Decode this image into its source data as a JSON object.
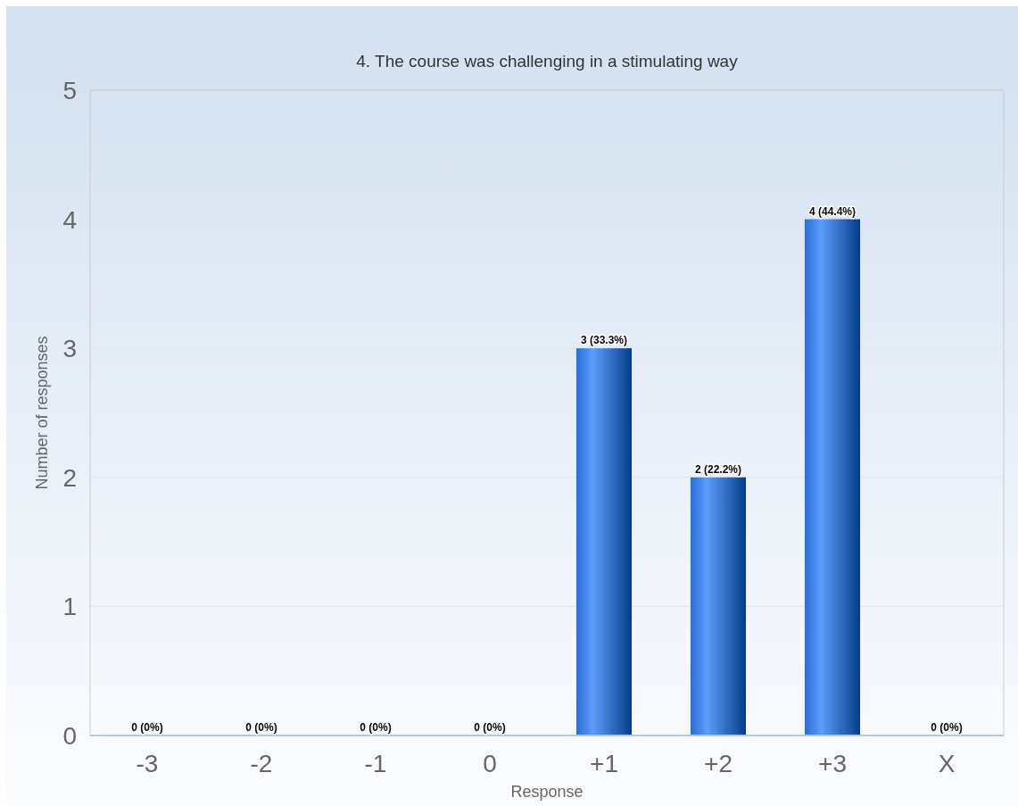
{
  "chart_data": {
    "type": "bar",
    "title": "4. The course was challenging in a stimulating way",
    "xlabel": "Response",
    "ylabel": "Number of responses",
    "categories": [
      "-3",
      "-2",
      "-1",
      "0",
      "+1",
      "+2",
      "+3",
      "X"
    ],
    "values": [
      0,
      0,
      0,
      0,
      3,
      2,
      4,
      0
    ],
    "color": "#2a6fd6",
    "value_labels": [
      "0 (0%)",
      "0 (0%)",
      "0 (0%)",
      "0 (0%)",
      "3 (33.3%)",
      "2 (22.2%)",
      "4 (44.4%)",
      "0 (0%)"
    ],
    "ylim": [
      0,
      5
    ],
    "yticks": [
      0,
      1,
      2,
      3,
      4,
      5
    ],
    "grid": "y"
  }
}
